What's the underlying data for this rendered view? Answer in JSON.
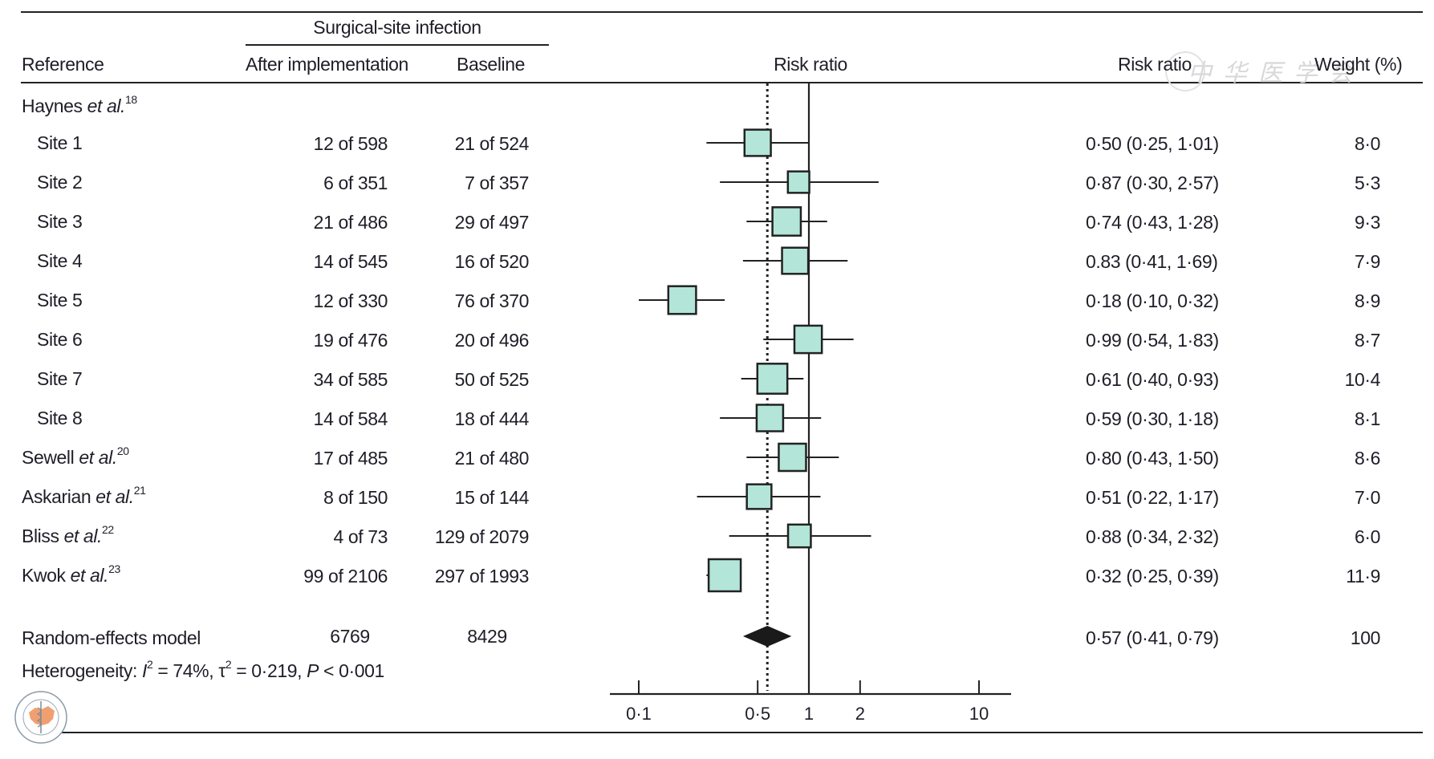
{
  "header": {
    "group_label": "Surgical-site infection",
    "col_reference": "Reference",
    "col_after": "After implementation",
    "col_baseline": "Baseline",
    "col_plot": "Risk ratio",
    "col_rr": "Risk ratio",
    "col_weight": "Weight (%)"
  },
  "rows": [
    {
      "label": "Haynes ",
      "etal": "et al.",
      "ref": "18",
      "indent": false,
      "group": true,
      "after": "",
      "baseline": "",
      "rr_text": "",
      "weight": ""
    },
    {
      "label": "Site 1",
      "etal": "",
      "ref": "",
      "indent": true,
      "after": "12 of 598",
      "baseline": "21 of 524",
      "rr_text": "0·50 (0·25, 1·01)",
      "weight": "8·0"
    },
    {
      "label": "Site 2",
      "etal": "",
      "ref": "",
      "indent": true,
      "after": "6 of 351",
      "baseline": "7 of 357",
      "rr_text": "0·87 (0·30, 2·57)",
      "weight": "5·3"
    },
    {
      "label": "Site 3",
      "etal": "",
      "ref": "",
      "indent": true,
      "after": "21 of 486",
      "baseline": "29 of 497",
      "rr_text": "0·74 (0·43, 1·28)",
      "weight": "9·3"
    },
    {
      "label": "Site 4",
      "etal": "",
      "ref": "",
      "indent": true,
      "after": "14 of 545",
      "baseline": "16 of 520",
      "rr_text": "0.83 (0·41, 1·69)",
      "weight": "7·9"
    },
    {
      "label": "Site 5",
      "etal": "",
      "ref": "",
      "indent": true,
      "after": "12 of 330",
      "baseline": "76 of 370",
      "rr_text": "0·18 (0·10, 0·32)",
      "weight": "8·9"
    },
    {
      "label": "Site 6",
      "etal": "",
      "ref": "",
      "indent": true,
      "after": "19 of 476",
      "baseline": "20 of 496",
      "rr_text": "0·99 (0·54, 1·83)",
      "weight": "8·7"
    },
    {
      "label": "Site 7",
      "etal": "",
      "ref": "",
      "indent": true,
      "after": "34 of 585",
      "baseline": "50 of 525",
      "rr_text": "0·61 (0·40, 0·93)",
      "weight": "10·4"
    },
    {
      "label": "Site 8",
      "etal": "",
      "ref": "",
      "indent": true,
      "after": "14 of 584",
      "baseline": "18 of 444",
      "rr_text": "0·59 (0·30, 1·18)",
      "weight": "8·1"
    },
    {
      "label": "Sewell ",
      "etal": "et al.",
      "ref": "20",
      "indent": false,
      "after": "17 of 485",
      "baseline": "21 of 480",
      "rr_text": "0·80 (0·43, 1·50)",
      "weight": "8·6"
    },
    {
      "label": "Askarian ",
      "etal": "et al.",
      "ref": "21",
      "indent": false,
      "after": "8 of 150",
      "baseline": "15 of 144",
      "rr_text": "0·51 (0·22, 1·17)",
      "weight": "7·0"
    },
    {
      "label": "Bliss ",
      "etal": "et al.",
      "ref": "22",
      "indent": false,
      "after": "4 of 73",
      "baseline": "129 of 2079",
      "rr_text": "0·88 (0·34, 2·32)",
      "weight": "6·0"
    },
    {
      "label": "Kwok ",
      "etal": "et al.",
      "ref": "23",
      "indent": false,
      "after": "99 of 2106",
      "baseline": "297 of 1993",
      "rr_text": "0·32 (0·25, 0·39)",
      "weight": "11·9"
    }
  ],
  "summary": {
    "label": "Random-effects model",
    "after": "6769",
    "baseline": "8429",
    "rr_text": "0·57 (0·41, 0·79)",
    "weight": "100",
    "heterogeneity_prefix": "Heterogeneity: ",
    "i2_symbol": "I",
    "i2_rest": " = 74%, ",
    "tau_symbol": "τ",
    "tau_rest": " = 0·219, ",
    "p_symbol": "P",
    "p_rest": " < 0·001"
  },
  "watermark": {
    "text": "中华医学会",
    "logo_text": "CHINESE MEDICAL ASSOCIATION",
    "logo_year": "1915",
    "logo_cn": "中华医学会"
  },
  "chart_data": {
    "type": "forest",
    "xlabel": "Risk ratio",
    "xscale": "log",
    "xlim": [
      0.075,
      14
    ],
    "ticks": [
      0.1,
      0.5,
      1,
      2,
      10
    ],
    "tick_labels": [
      "0·1",
      "0·5",
      "1",
      "2",
      "10"
    ],
    "reference_line": 1,
    "pooled_line": 0.57,
    "box_color": "#b3e5d9",
    "studies": [
      {
        "name": "Site 1",
        "rr": 0.5,
        "lo": 0.25,
        "hi": 1.01,
        "weight": 8.0
      },
      {
        "name": "Site 2",
        "rr": 0.87,
        "lo": 0.3,
        "hi": 2.57,
        "weight": 5.3
      },
      {
        "name": "Site 3",
        "rr": 0.74,
        "lo": 0.43,
        "hi": 1.28,
        "weight": 9.3
      },
      {
        "name": "Site 4",
        "rr": 0.83,
        "lo": 0.41,
        "hi": 1.69,
        "weight": 7.9
      },
      {
        "name": "Site 5",
        "rr": 0.18,
        "lo": 0.1,
        "hi": 0.32,
        "weight": 8.9
      },
      {
        "name": "Site 6",
        "rr": 0.99,
        "lo": 0.54,
        "hi": 1.83,
        "weight": 8.7
      },
      {
        "name": "Site 7",
        "rr": 0.61,
        "lo": 0.4,
        "hi": 0.93,
        "weight": 10.4
      },
      {
        "name": "Site 8",
        "rr": 0.59,
        "lo": 0.3,
        "hi": 1.18,
        "weight": 8.1
      },
      {
        "name": "Sewell et al.",
        "rr": 0.8,
        "lo": 0.43,
        "hi": 1.5,
        "weight": 8.6
      },
      {
        "name": "Askarian et al.",
        "rr": 0.51,
        "lo": 0.22,
        "hi": 1.17,
        "weight": 7.0
      },
      {
        "name": "Bliss et al.",
        "rr": 0.88,
        "lo": 0.34,
        "hi": 2.32,
        "weight": 6.0
      },
      {
        "name": "Kwok et al.",
        "rr": 0.32,
        "lo": 0.25,
        "hi": 0.39,
        "weight": 11.9
      }
    ],
    "pooled": {
      "name": "Random-effects model",
      "rr": 0.57,
      "lo": 0.41,
      "hi": 0.79
    }
  }
}
